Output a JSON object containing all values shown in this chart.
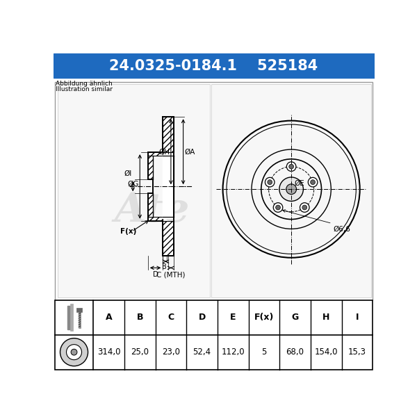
{
  "part_number": "24.0325-0184.1",
  "ref_number": "525184",
  "bg_color": "#ffffff",
  "header_bg": "#1e6abf",
  "header_text_color": "#ffffff",
  "abbildung_line1": "Abbildung ähnlich",
  "abbildung_line2": "Illustration similar",
  "table_headers": [
    "A",
    "B",
    "C",
    "D",
    "E",
    "F(x)",
    "G",
    "H",
    "I"
  ],
  "table_values": [
    "314,0",
    "25,0",
    "23,0",
    "52,4",
    "112,0",
    "5",
    "68,0",
    "154,0",
    "15,3"
  ],
  "dim_label_phi6_6": "Ø6,6",
  "dim_label_E": "ØE",
  "dim_label_A": "ØA",
  "dim_label_H": "ØH",
  "dim_label_I": "ØI",
  "dim_label_G": "ØG",
  "dim_label_B": "B",
  "dim_label_C": "C (MTH)",
  "dim_label_D": "D",
  "dim_label_F": "F(x)"
}
